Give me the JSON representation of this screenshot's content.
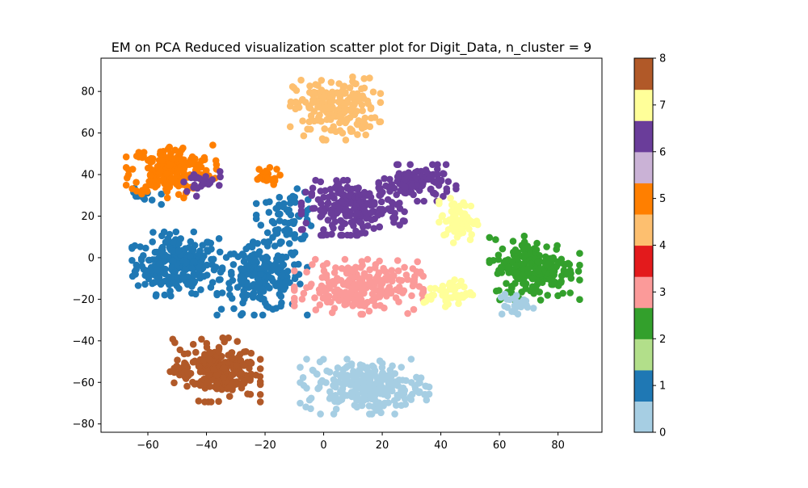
{
  "chart_data": {
    "type": "scatter",
    "title": "EM on PCA Reduced visualization scatter plot for Digit_Data, n_cluster = 9",
    "xlabel": "",
    "ylabel": "",
    "xlim": [
      -76,
      95
    ],
    "ylim": [
      -84,
      96
    ],
    "x_ticks": [
      -60,
      -40,
      -20,
      0,
      20,
      40,
      60,
      80
    ],
    "y_ticks": [
      -80,
      -60,
      -40,
      -20,
      0,
      20,
      40,
      60,
      80
    ],
    "grid": false,
    "colorbar": {
      "range": [
        0,
        8
      ],
      "ticks": [
        0,
        1,
        2,
        3,
        4,
        5,
        6,
        7,
        8
      ],
      "colormap": "Paired",
      "colors": [
        "#a6cee3",
        "#1f78b4",
        "#b2df8a",
        "#33a02c",
        "#fb9a99",
        "#e31a1c",
        "#fdbf6f",
        "#ff7f00",
        "#cab2d6",
        "#6a3d9a",
        "#ffff99",
        "#b15928"
      ]
    },
    "clusters": [
      {
        "label": 1,
        "color": "#1f78b4",
        "center": [
          -50,
          -3
        ],
        "spread": [
          7,
          7
        ],
        "count": 260
      },
      {
        "label": 1,
        "color": "#1f78b4",
        "center": [
          -21,
          -10
        ],
        "spread": [
          7,
          8
        ],
        "count": 200
      },
      {
        "label": 1,
        "color": "#1f78b4",
        "center": [
          -12,
          20
        ],
        "spread": [
          5,
          6
        ],
        "count": 70
      },
      {
        "label": 1,
        "color": "#1f78b4",
        "center": [
          -62,
          29
        ],
        "spread": [
          3,
          2
        ],
        "count": 12
      },
      {
        "label": 5,
        "color": "#ff7f00",
        "center": [
          -52,
          42
        ],
        "spread": [
          7,
          6
        ],
        "count": 200
      },
      {
        "label": 5,
        "color": "#ff7f00",
        "center": [
          -20,
          39
        ],
        "spread": [
          2.5,
          2
        ],
        "count": 25
      },
      {
        "label": 4,
        "color": "#fdbf6f",
        "center": [
          4,
          72
        ],
        "spread": [
          7,
          7
        ],
        "count": 200
      },
      {
        "label": 6,
        "color": "#6a3d9a",
        "center": [
          10,
          24
        ],
        "spread": [
          8,
          6
        ],
        "count": 220
      },
      {
        "label": 6,
        "color": "#6a3d9a",
        "center": [
          32,
          36
        ],
        "spread": [
          6,
          4
        ],
        "count": 110
      },
      {
        "label": 6,
        "color": "#6a3d9a",
        "center": [
          -42,
          36
        ],
        "spread": [
          4,
          3
        ],
        "count": 25
      },
      {
        "label": 3,
        "color": "#fb9a99",
        "center": [
          12,
          -14
        ],
        "spread": [
          10,
          6
        ],
        "count": 240
      },
      {
        "label": 7,
        "color": "#ffff99",
        "center": [
          46,
          18
        ],
        "spread": [
          3,
          5
        ],
        "count": 70
      },
      {
        "label": 7,
        "color": "#ffff99",
        "center": [
          43,
          -17
        ],
        "spread": [
          4,
          3
        ],
        "count": 45
      },
      {
        "label": 2,
        "color": "#33a02c",
        "center": [
          72,
          -5
        ],
        "spread": [
          7,
          7
        ],
        "count": 220
      },
      {
        "label": 0,
        "color": "#a6cee3",
        "center": [
          14,
          -62
        ],
        "spread": [
          10,
          6
        ],
        "count": 240
      },
      {
        "label": 0,
        "color": "#a6cee3",
        "center": [
          65,
          -23
        ],
        "spread": [
          3,
          3
        ],
        "count": 25
      },
      {
        "label": 8,
        "color": "#b15928",
        "center": [
          -37,
          -54
        ],
        "spread": [
          7,
          7
        ],
        "count": 230
      }
    ]
  }
}
